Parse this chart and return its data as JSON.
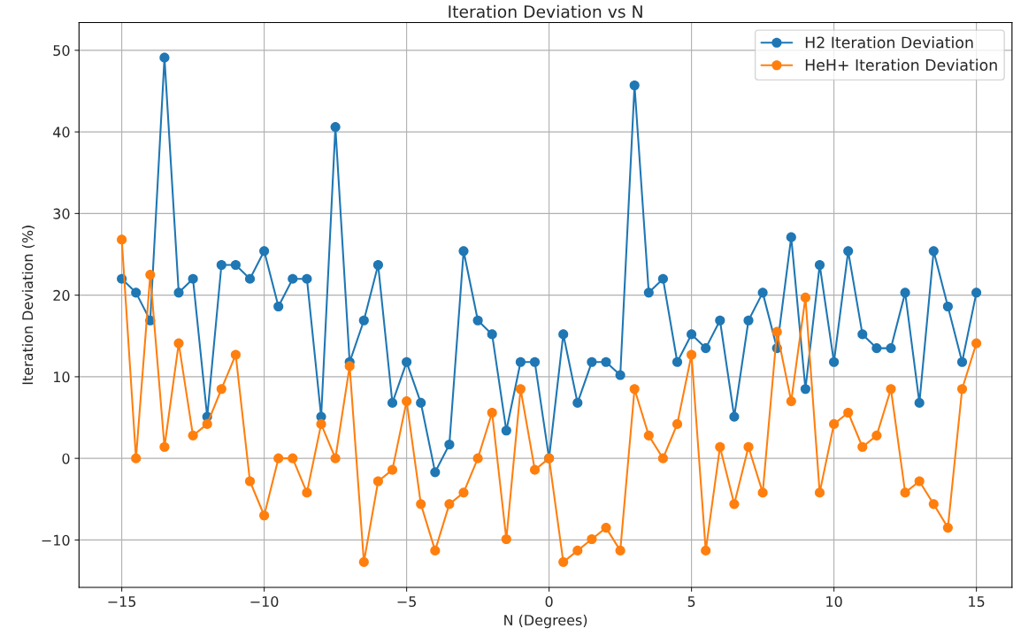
{
  "chart_data": {
    "type": "line",
    "title": "Iteration Deviation vs N",
    "xlabel": "N (Degrees)",
    "ylabel": "Iteration Deviation (%)",
    "x": [
      -15,
      -14.5,
      -14,
      -13.5,
      -13,
      -12.5,
      -12,
      -11.5,
      -11,
      -10.5,
      -10,
      -9.5,
      -9,
      -8.5,
      -8,
      -7.5,
      -7,
      -6.5,
      -6,
      -5.5,
      -5,
      -4.5,
      -4,
      -3.5,
      -3,
      -2.5,
      -2,
      -1.5,
      -1,
      -0.5,
      0,
      0.5,
      1,
      1.5,
      2,
      2.5,
      3,
      3.5,
      4,
      4.5,
      5,
      5.5,
      6,
      6.5,
      7,
      7.5,
      8,
      8.5,
      9,
      9.5,
      10,
      10.5,
      11,
      11.5,
      12,
      12.5,
      13,
      13.5,
      14,
      14.5,
      15
    ],
    "series": [
      {
        "name": "H2 Iteration Deviation",
        "color": "#1f77b4",
        "values": [
          22.0,
          20.3,
          16.9,
          49.1,
          20.3,
          22.0,
          5.1,
          23.7,
          23.7,
          22.0,
          25.4,
          18.6,
          22.0,
          22.0,
          5.1,
          40.6,
          11.8,
          16.9,
          23.7,
          6.8,
          11.8,
          6.8,
          -1.7,
          1.7,
          25.4,
          16.9,
          15.2,
          3.4,
          11.8,
          11.8,
          0,
          15.2,
          6.8,
          11.8,
          11.8,
          10.2,
          45.7,
          20.3,
          22.0,
          11.8,
          15.2,
          13.5,
          16.9,
          5.1,
          16.9,
          20.3,
          13.5,
          27.1,
          8.5,
          23.7,
          11.8,
          25.4,
          15.2,
          13.5,
          13.5,
          20.3,
          6.8,
          25.4,
          18.6,
          11.8,
          20.3
        ]
      },
      {
        "name": "HeH+ Iteration Deviation",
        "color": "#ff7f0e",
        "values": [
          26.8,
          0,
          22.5,
          1.4,
          14.1,
          2.8,
          4.2,
          8.5,
          12.7,
          -2.8,
          -7.0,
          0,
          0,
          -4.2,
          4.2,
          0,
          11.3,
          -12.7,
          -2.8,
          -1.4,
          7.0,
          -5.6,
          -11.3,
          -5.6,
          -4.2,
          0,
          5.6,
          -9.9,
          8.5,
          -1.4,
          0,
          -12.7,
          -11.3,
          -9.9,
          -8.5,
          -11.3,
          8.5,
          2.8,
          0,
          4.2,
          12.7,
          -11.3,
          1.4,
          -5.6,
          1.4,
          -4.2,
          15.5,
          7.0,
          19.7,
          -4.2,
          4.2,
          5.6,
          1.4,
          2.8,
          8.5,
          -4.2,
          -2.8,
          -5.6,
          -8.5,
          8.5,
          14.1
        ]
      }
    ],
    "xlim": [
      -16.5,
      16.25
    ],
    "ylim": [
      -15.8,
      53.4
    ],
    "xticks": [
      {
        "value": -15,
        "label": "−15"
      },
      {
        "value": -10,
        "label": "−10"
      },
      {
        "value": -5,
        "label": "−5"
      },
      0,
      5,
      10,
      15
    ],
    "yticks": [
      {
        "value": -10,
        "label": "−10"
      },
      0,
      10,
      20,
      30,
      40,
      50
    ],
    "grid": true,
    "legend": "top right",
    "marker": "circle",
    "line_style": "solid"
  }
}
